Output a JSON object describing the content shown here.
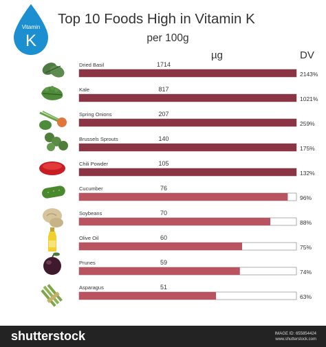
{
  "title": "Top 10 Foods High in Vitamin K",
  "subtitle": "per 100g",
  "unit_label": "µg",
  "dv_header": "DV",
  "badge": {
    "line1": "Vitamin",
    "line2": "K",
    "color": "#1c8fd0"
  },
  "colors": {
    "over_dv": "#8b3444",
    "under_dv": "#b9535f",
    "frame": "#9a9a9a"
  },
  "chart_data": {
    "type": "bar",
    "orientation": "horizontal",
    "title": "Top 10 Foods High in Vitamin K",
    "subtitle": "per 100g",
    "unit": "µg",
    "categories": [
      "Dried Basil",
      "Kale",
      "Spring Onions",
      "Brussels Sprouts",
      "Chili Powder",
      "Cucumber",
      "Soybeans",
      "Olive Oil",
      "Prunes",
      "Asparagus"
    ],
    "values": [
      1714,
      817,
      207,
      140,
      105,
      76,
      70,
      60,
      59,
      51
    ],
    "value_labels": [
      "1714",
      "817",
      "207",
      "140",
      "105",
      "76",
      "70",
      "60",
      "59",
      "51"
    ],
    "dv_percent": [
      2143,
      1021,
      259,
      175,
      132,
      96,
      88,
      75,
      74,
      63
    ],
    "dv_labels": [
      "2143%",
      "1021%",
      "259%",
      "175%",
      "132%",
      "96%",
      "88%",
      "75%",
      "74%",
      "63%"
    ],
    "bar_scale_max_percent": 100
  },
  "foods": [
    {
      "icon": "basil-icon"
    },
    {
      "icon": "kale-icon"
    },
    {
      "icon": "spring-onion-icon"
    },
    {
      "icon": "brussels-sprouts-icon"
    },
    {
      "icon": "chili-powder-icon"
    },
    {
      "icon": "cucumber-icon"
    },
    {
      "icon": "soybeans-icon"
    },
    {
      "icon": "olive-oil-icon"
    },
    {
      "icon": "prune-icon"
    },
    {
      "icon": "asparagus-icon"
    }
  ],
  "footer": {
    "brand": "shutterstock",
    "image_id": "IMAGE ID: 655854424",
    "site": "www.shutterstock.com"
  }
}
